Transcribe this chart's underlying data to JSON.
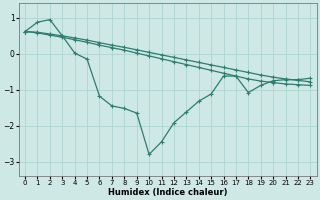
{
  "xlabel": "Humidex (Indice chaleur)",
  "bg_color": "#cde8e5",
  "grid_color": "#aed4cf",
  "line_color": "#2e7d6e",
  "xlim": [
    -0.5,
    23.5
  ],
  "ylim": [
    -3.4,
    1.4
  ],
  "yticks": [
    -3,
    -2,
    -1,
    0,
    1
  ],
  "xticks": [
    0,
    1,
    2,
    3,
    4,
    5,
    6,
    7,
    8,
    9,
    10,
    11,
    12,
    13,
    14,
    15,
    16,
    17,
    18,
    19,
    20,
    21,
    22,
    23
  ],
  "line_straight1_x": [
    0,
    1,
    2,
    3,
    4,
    5,
    6,
    7,
    8,
    9,
    10,
    11,
    12,
    13,
    14,
    15,
    16,
    17,
    18,
    19,
    20,
    21,
    22,
    23
  ],
  "line_straight1_y": [
    0.62,
    0.6,
    0.55,
    0.5,
    0.44,
    0.38,
    0.31,
    0.24,
    0.18,
    0.11,
    0.04,
    -0.03,
    -0.1,
    -0.17,
    -0.24,
    -0.31,
    -0.38,
    -0.45,
    -0.52,
    -0.59,
    -0.65,
    -0.7,
    -0.74,
    -0.78
  ],
  "line_straight2_x": [
    0,
    1,
    2,
    3,
    4,
    5,
    6,
    7,
    8,
    9,
    10,
    11,
    12,
    13,
    14,
    15,
    16,
    17,
    18,
    19,
    20,
    21,
    22,
    23
  ],
  "line_straight2_y": [
    0.62,
    0.58,
    0.52,
    0.46,
    0.39,
    0.32,
    0.24,
    0.17,
    0.1,
    0.02,
    -0.06,
    -0.14,
    -0.22,
    -0.3,
    -0.38,
    -0.46,
    -0.54,
    -0.62,
    -0.7,
    -0.76,
    -0.8,
    -0.84,
    -0.86,
    -0.88
  ],
  "line_dip_x": [
    0,
    1,
    2,
    3,
    4,
    5,
    6,
    7,
    8,
    9,
    10,
    11,
    12,
    13,
    14,
    15,
    16,
    17,
    18,
    19,
    20,
    21,
    22,
    23
  ],
  "line_dip_y": [
    0.62,
    0.88,
    0.95,
    0.5,
    0.02,
    -0.15,
    -1.18,
    -1.45,
    -1.52,
    -1.65,
    -2.8,
    -2.45,
    -1.92,
    -1.62,
    -1.32,
    -1.12,
    -0.62,
    -0.62,
    -1.08,
    -0.88,
    -0.75,
    -0.72,
    -0.72,
    -0.68
  ]
}
